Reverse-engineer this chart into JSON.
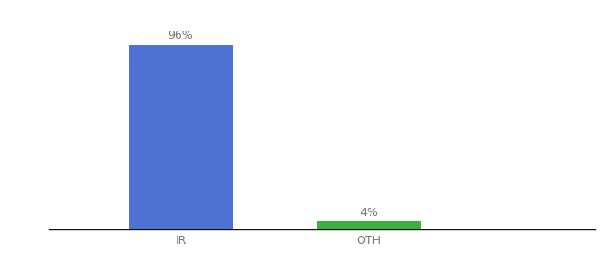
{
  "categories": [
    "IR",
    "OTH"
  ],
  "values": [
    96,
    4
  ],
  "bar_colors": [
    "#4e72d4",
    "#3cb043"
  ],
  "label_texts": [
    "96%",
    "4%"
  ],
  "background_color": "#ffffff",
  "ylim": [
    0,
    108
  ],
  "bar_width": 0.55,
  "label_fontsize": 9,
  "tick_fontsize": 9,
  "label_color": "#777777",
  "tick_color": "#777777",
  "x_positions": [
    1,
    2
  ],
  "xlim": [
    0.3,
    3.2
  ]
}
